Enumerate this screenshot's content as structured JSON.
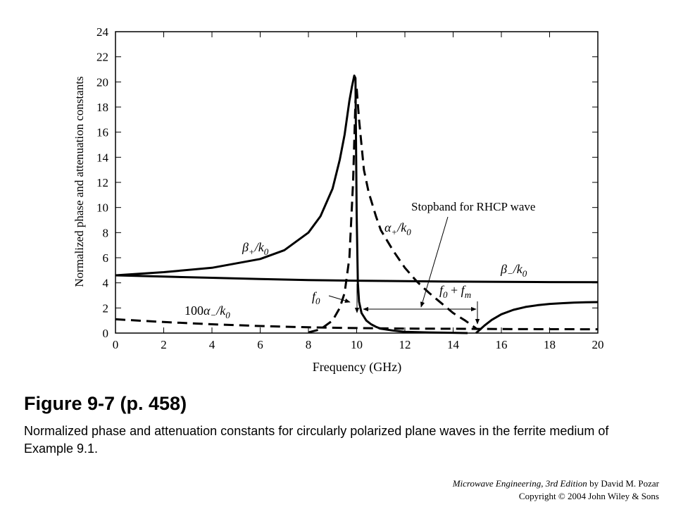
{
  "chart_data": {
    "type": "line",
    "xlabel": "Frequency (GHz)",
    "ylabel": "Normalized phase and attenuation constants",
    "xlim": [
      0,
      20
    ],
    "ylim": [
      0,
      24
    ],
    "xticks": [
      "0",
      "2",
      "4",
      "6",
      "8",
      "10",
      "12",
      "14",
      "16",
      "18",
      "20"
    ],
    "yticks": [
      "0",
      "2",
      "4",
      "6",
      "8",
      "10",
      "12",
      "14",
      "16",
      "18",
      "20",
      "22",
      "24"
    ],
    "grid": false,
    "series": [
      {
        "name": "β+/k0",
        "style": "solid",
        "x": [
          0,
          2,
          4,
          6,
          7,
          8,
          8.5,
          9,
          9.3,
          9.5,
          9.7,
          9.8,
          9.9,
          9.95,
          10.0,
          10.05,
          10.1,
          10.2,
          10.4,
          10.6,
          10.8,
          11.0,
          11.5,
          12,
          13,
          14,
          14.6
        ],
        "y": [
          4.6,
          4.85,
          5.2,
          5.9,
          6.6,
          8.0,
          9.3,
          11.5,
          13.8,
          15.8,
          18.5,
          19.6,
          20.5,
          20.3,
          9.5,
          4.0,
          2.5,
          1.6,
          1.0,
          0.7,
          0.5,
          0.35,
          0.2,
          0.1,
          0.05,
          0.02,
          0
        ]
      },
      {
        "name": "β−/k0",
        "style": "solid",
        "x": [
          0,
          2,
          4,
          6,
          8,
          10,
          12,
          14,
          16,
          18,
          20
        ],
        "y": [
          4.6,
          4.5,
          4.4,
          4.3,
          4.22,
          4.17,
          4.13,
          4.1,
          4.08,
          4.06,
          4.05
        ]
      },
      {
        "name": "α+/k0",
        "style": "dashed",
        "x": [
          8,
          8.5,
          9,
          9.3,
          9.5,
          9.7,
          9.85,
          9.95,
          10.0,
          10.1,
          10.3,
          10.5,
          10.8,
          11,
          11.5,
          12,
          12.5,
          13,
          13.5,
          14,
          14.5,
          15
        ],
        "y": [
          0.05,
          0.3,
          1.0,
          2.0,
          3.2,
          6.0,
          12.0,
          18.5,
          19.5,
          17.0,
          13.0,
          11.2,
          9.3,
          8.2,
          6.6,
          5.2,
          4.1,
          3.2,
          2.4,
          1.6,
          1.0,
          0.3
        ]
      },
      {
        "name": "100α−/k0",
        "style": "dashed",
        "x": [
          0,
          2,
          4,
          6,
          8,
          10,
          12,
          14,
          16,
          18,
          20
        ],
        "y": [
          1.1,
          0.88,
          0.7,
          0.56,
          0.46,
          0.4,
          0.36,
          0.34,
          0.32,
          0.31,
          0.3
        ]
      },
      {
        "name": "",
        "style": "solid",
        "x": [
          14.95,
          15.1,
          15.3,
          15.6,
          16,
          16.5,
          17,
          17.5,
          18,
          18.5,
          19,
          19.5,
          20
        ],
        "y": [
          0,
          0.25,
          0.6,
          1.05,
          1.5,
          1.85,
          2.08,
          2.22,
          2.32,
          2.38,
          2.42,
          2.45,
          2.47
        ]
      }
    ],
    "annotations": {
      "f0": "f0",
      "f0_fm": "f0 + fm",
      "stopband": "Stopband for RHCP wave",
      "stopband_range": [
        10,
        15
      ]
    }
  },
  "figure": {
    "title": "Figure 9-7  (p. 458)",
    "caption": "Normalized phase and attenuation constants for circularly polarized plane waves in the ferrite medium of Example 9.1."
  },
  "credits": {
    "book_title": "Microwave Engineering, 3rd Edition",
    "author": " by David M. Pozar",
    "copyright": "Copyright © 2004 John Wiley & Sons"
  }
}
